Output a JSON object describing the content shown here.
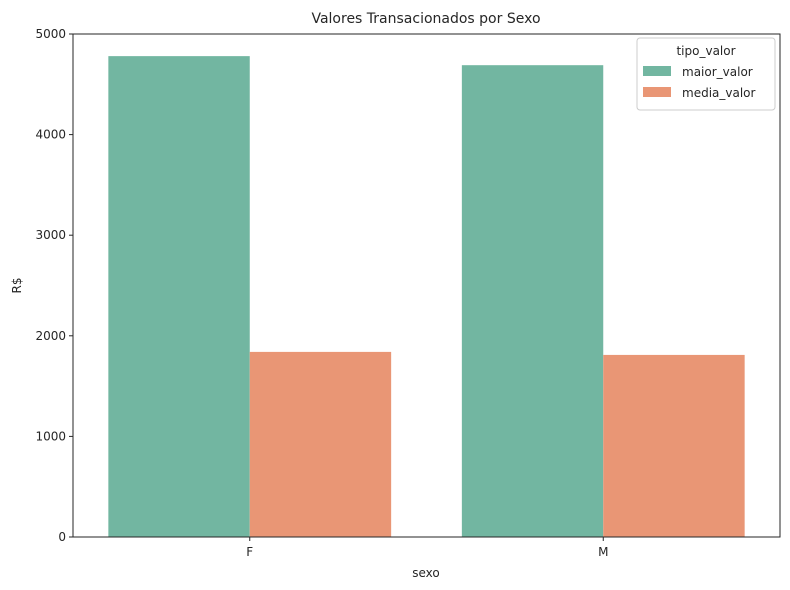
{
  "chart_data": {
    "type": "bar",
    "title": "Valores Transacionados por Sexo",
    "xlabel": "sexo",
    "ylabel": "R$",
    "categories": [
      "F",
      "M"
    ],
    "ylim": [
      0,
      5000
    ],
    "yticks": [
      0,
      1000,
      2000,
      3000,
      4000,
      5000
    ],
    "legend": {
      "title": "tipo_valor",
      "position": "top-right"
    },
    "series": [
      {
        "name": "maior_valor",
        "color": "#72b6a1",
        "values": [
          4780,
          4690
        ]
      },
      {
        "name": "media_valor",
        "color": "#e99675",
        "values": [
          1840,
          1810
        ]
      }
    ]
  }
}
